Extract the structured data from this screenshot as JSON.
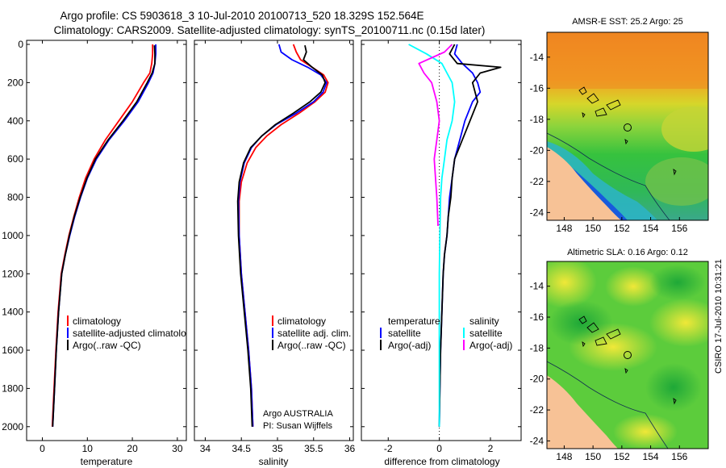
{
  "header": {
    "line1": "Argo profile: CS 5903618_3 10-Jul-2010 20100713_520 18.329S 152.564E",
    "line2": "Climatology: CARS2009. Satellite-adjusted climatology: synTS_20100711.nc (0.15d later)"
  },
  "colors": {
    "climatology": "#ff0000",
    "satellite": "#0000ff",
    "argo": "#000000",
    "sat_salinity": "#00ffff",
    "argo_adj_salinity": "#ff00ff"
  },
  "chart_data": [
    {
      "type": "line",
      "id": "temperature",
      "xlabel": "temperature",
      "xlim": [
        -3.5,
        32
      ],
      "ylim": [
        0,
        2060
      ],
      "yreversed": true,
      "xticks": [
        0,
        10,
        20,
        30
      ],
      "yticks": [
        0,
        200,
        400,
        600,
        800,
        1000,
        1200,
        1400,
        1600,
        1800,
        2000
      ],
      "legend": [
        "climatology",
        "satellite-adjusted climatology",
        "Argo(..raw -QC)"
      ],
      "series": [
        {
          "name": "climatology",
          "color": "#ff0000",
          "x": [
            24.5,
            24.5,
            24.3,
            23.9,
            22.5,
            20.0,
            17.0,
            14.0,
            11.5,
            9.6,
            8.2,
            7.0,
            5.9,
            5.0,
            4.2,
            3.5,
            3.0,
            2.6,
            2.3,
            2.2
          ],
          "y": [
            0,
            50,
            100,
            150,
            200,
            300,
            400,
            500,
            600,
            700,
            800,
            900,
            1000,
            1100,
            1200,
            1400,
            1600,
            1800,
            1950,
            2000
          ]
        },
        {
          "name": "satellite-adjusted climatology",
          "color": "#0000ff",
          "x": [
            25.2,
            25.2,
            25.0,
            24.6,
            23.6,
            21.3,
            18.2,
            14.8,
            12.0,
            10.0,
            8.5,
            7.2,
            6.1,
            5.1,
            4.3,
            3.6,
            3.1,
            2.7,
            2.4,
            2.3
          ],
          "y": [
            0,
            50,
            100,
            150,
            200,
            300,
            400,
            500,
            600,
            700,
            800,
            900,
            1000,
            1100,
            1200,
            1400,
            1600,
            1800,
            1950,
            2000
          ]
        },
        {
          "name": "Argo(..raw -QC)",
          "color": "#000000",
          "x": [
            24.9,
            25.0,
            25.0,
            24.4,
            23.3,
            21.0,
            17.9,
            14.6,
            11.8,
            9.9,
            8.4,
            7.1,
            6.0,
            5.1,
            4.3,
            3.6,
            3.1,
            2.7,
            2.4,
            2.3
          ],
          "y": [
            5,
            50,
            100,
            150,
            200,
            300,
            400,
            500,
            600,
            700,
            800,
            900,
            1000,
            1100,
            1200,
            1400,
            1600,
            1800,
            1950,
            2000
          ]
        }
      ]
    },
    {
      "type": "line",
      "id": "salinity",
      "xlabel": "salinity",
      "xlim": [
        33.85,
        36.05
      ],
      "ylim": [
        0,
        2060
      ],
      "yreversed": true,
      "xticks": [
        34,
        34.5,
        35,
        35.5,
        36
      ],
      "xticklabels": [
        "34",
        "34.5",
        "35",
        "35.5",
        "36"
      ],
      "legend": [
        "climatology",
        "satellite adj. clim.",
        "Argo(..raw -QC)"
      ],
      "annotation": [
        "Argo AUSTRALIA",
        "PI: Susan Wijffels"
      ],
      "series": [
        {
          "name": "climatology",
          "color": "#ff0000",
          "x": [
            35.22,
            35.26,
            35.32,
            35.48,
            35.64,
            35.7,
            35.66,
            35.52,
            35.3,
            35.05,
            34.85,
            34.7,
            34.58,
            34.5,
            34.47,
            34.47,
            34.5,
            34.55,
            34.6,
            34.64,
            34.66
          ],
          "y": [
            0,
            40,
            80,
            120,
            160,
            200,
            250,
            300,
            360,
            420,
            480,
            540,
            620,
            720,
            820,
            1000,
            1200,
            1400,
            1600,
            1800,
            2000
          ]
        },
        {
          "name": "satellite adj. clim.",
          "color": "#0000ff",
          "x": [
            35.02,
            35.05,
            35.2,
            35.42,
            35.6,
            35.68,
            35.63,
            35.5,
            35.26,
            34.98,
            34.78,
            34.64,
            34.54,
            34.48,
            34.46,
            34.47,
            34.5,
            34.55,
            34.6,
            34.64,
            34.66
          ],
          "y": [
            0,
            40,
            80,
            120,
            160,
            200,
            250,
            300,
            360,
            420,
            480,
            540,
            620,
            720,
            820,
            1000,
            1200,
            1400,
            1600,
            1800,
            2000
          ]
        },
        {
          "name": "Argo(..raw -QC)",
          "color": "#000000",
          "x": [
            35.38,
            35.4,
            35.36,
            35.48,
            35.62,
            35.66,
            35.6,
            35.45,
            35.22,
            34.97,
            34.78,
            34.63,
            34.53,
            34.47,
            34.45,
            34.46,
            34.49,
            34.54,
            34.59,
            34.63,
            34.65
          ],
          "y": [
            5,
            40,
            80,
            120,
            160,
            200,
            250,
            300,
            360,
            420,
            480,
            540,
            620,
            720,
            820,
            1000,
            1200,
            1400,
            1600,
            1800,
            2000
          ]
        }
      ]
    },
    {
      "type": "line",
      "id": "difference",
      "xlabel": "difference from climatology",
      "xlim": [
        -3.05,
        3.2
      ],
      "ylim": [
        0,
        2060
      ],
      "yreversed": true,
      "xticks": [
        -2,
        0,
        2
      ],
      "legend_left": [
        "temperature",
        "satellite",
        "Argo(-adj)"
      ],
      "legend_right": [
        "salinity",
        "satellite",
        "Argo(-adj)"
      ],
      "series": [
        {
          "name": "temperature satellite",
          "color": "#0000ff",
          "x": [
            0.7,
            0.6,
            0.9,
            1.3,
            1.5,
            1.6,
            1.3,
            1.0,
            0.8,
            0.6,
            0.5,
            0.4,
            0.35,
            0.3,
            0.2,
            0.15,
            0.1,
            0.05,
            0.02,
            0.0
          ],
          "y": [
            0,
            50,
            100,
            150,
            200,
            250,
            300,
            400,
            500,
            600,
            700,
            800,
            900,
            1000,
            1100,
            1200,
            1400,
            1600,
            1800,
            2000
          ]
        },
        {
          "name": "temperature Argo(-adj)",
          "color": "#000000",
          "x": [
            0.6,
            0.4,
            0.7,
            2.4,
            1.6,
            1.3,
            1.5,
            1.2,
            0.9,
            0.6,
            0.5,
            0.45,
            0.35,
            0.3,
            0.2,
            0.15,
            0.1,
            0.05,
            0.02,
            0.0
          ],
          "y": [
            0,
            50,
            100,
            120,
            150,
            200,
            300,
            400,
            500,
            600,
            700,
            800,
            900,
            1000,
            1100,
            1200,
            1400,
            1600,
            1800,
            2000
          ]
        },
        {
          "name": "salinity satellite",
          "color": "#00ffff",
          "x": [
            -1.2,
            -0.5,
            0.1,
            0.3,
            0.5,
            0.6,
            0.5,
            0.3,
            0.2,
            0.1,
            0.05,
            0.02,
            0.0,
            0.0,
            0.0,
            0.0
          ],
          "y": [
            0,
            50,
            100,
            150,
            200,
            300,
            400,
            500,
            600,
            700,
            800,
            1000,
            1200,
            1400,
            1600,
            2000
          ]
        },
        {
          "name": "salinity Argo(-adj)",
          "color": "#ff00ff",
          "x": [
            0.5,
            0.2,
            -0.8,
            -0.6,
            -0.3,
            -0.1,
            0.0,
            -0.1,
            -0.2,
            -0.15,
            -0.1,
            -0.05
          ],
          "y": [
            0,
            40,
            100,
            150,
            200,
            300,
            400,
            500,
            600,
            700,
            800,
            950
          ]
        }
      ]
    }
  ],
  "maps": [
    {
      "id": "sst",
      "title": "AMSR-E SST: 25.2 Argo: 25",
      "xticks": [
        "148",
        "150",
        "152",
        "154",
        "156"
      ],
      "yticks": [
        "-14",
        "-16",
        "-18",
        "-20",
        "-22",
        "-24"
      ]
    },
    {
      "id": "sla",
      "title": "Altimetric SLA: 0.16 Argo: 0.12",
      "xticks": [
        "148",
        "150",
        "152",
        "154",
        "156"
      ],
      "yticks": [
        "-14",
        "-16",
        "-18",
        "-20",
        "-22",
        "-24"
      ]
    }
  ],
  "footer": "CSIRO 17-Jul-2010 10:31:21"
}
